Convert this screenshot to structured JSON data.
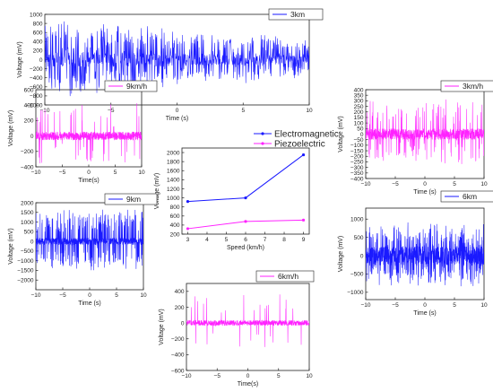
{
  "chart_data": [
    {
      "id": "p3kmEM",
      "type": "line",
      "color": "#1a1aff",
      "legend": "3km",
      "xlabel": "Time (s)",
      "ylabel": "Voltage (mV)",
      "xlim": [
        -10,
        10
      ],
      "ylim": [
        -1000,
        1000
      ],
      "xticks": [
        -10,
        -5,
        0,
        5,
        10
      ],
      "yticks": [
        -1000,
        -800,
        -600,
        -400,
        -200,
        0,
        200,
        400,
        600,
        800,
        1000
      ],
      "signal": {
        "base_amp": 160,
        "spike_rate": 0.5,
        "spike_amp": 650,
        "envelope": "decay",
        "seed": 11
      }
    },
    {
      "id": "p9kmPZ",
      "type": "line",
      "color": "#ff22ff",
      "legend": "9km/h",
      "xlabel": "Time(s)",
      "ylabel": "Voltage (mV)",
      "xlim": [
        -10,
        10
      ],
      "ylim": [
        -400,
        600
      ],
      "xticks": [
        -10,
        -5,
        0,
        5,
        10
      ],
      "yticks": [
        -400,
        -200,
        0,
        200,
        400,
        600
      ],
      "signal": {
        "base_amp": 55,
        "spike_rate": 0.05,
        "spike_amp": 400,
        "envelope": "flat",
        "seed": 21
      }
    },
    {
      "id": "p3kmPZ",
      "type": "line",
      "color": "#ff22ff",
      "legend": "3km/h",
      "xlabel": "Time (s)",
      "ylabel": "Voltage (mV)",
      "xlim": [
        -10,
        10
      ],
      "ylim": [
        -400,
        400
      ],
      "xticks": [
        -10,
        -5,
        0,
        5,
        10
      ],
      "yticks": [
        -400,
        -350,
        -300,
        -250,
        -200,
        -150,
        -100,
        -50,
        0,
        50,
        100,
        150,
        200,
        250,
        300,
        350,
        400
      ],
      "signal": {
        "base_amp": 50,
        "spike_rate": 0.12,
        "spike_amp": 280,
        "envelope": "flat",
        "seed": 31
      }
    },
    {
      "id": "pSpeed",
      "type": "line",
      "xlabel": "Speed (km/h)",
      "ylabel": "Voltage (mV)",
      "xlim": [
        2.7,
        9.3
      ],
      "ylim": [
        200,
        2100
      ],
      "xticks": [
        3,
        4,
        5,
        6,
        7,
        8,
        9
      ],
      "yticks": [
        200,
        400,
        600,
        800,
        1000,
        1200,
        1400,
        1600,
        1800,
        2000
      ],
      "x": [
        3,
        6,
        9
      ],
      "series": [
        {
          "name": "Electromagnetic",
          "color": "#1a1aff",
          "values": [
            920,
            1000,
            1950
          ]
        },
        {
          "name": "Piezoelectric",
          "color": "#ff22ff",
          "values": [
            320,
            480,
            510
          ]
        }
      ]
    },
    {
      "id": "p9kmEM",
      "type": "line",
      "color": "#1a1aff",
      "legend": "9km",
      "xlabel": "Time (s)",
      "ylabel": "Voltage (mV)",
      "xlim": [
        -10,
        10
      ],
      "ylim": [
        -2500,
        2000
      ],
      "xticks": [
        -10,
        -5,
        0,
        5,
        10
      ],
      "yticks": [
        -2000,
        -1500,
        -1000,
        -500,
        0,
        500,
        1000,
        1500,
        2000
      ],
      "signal": {
        "base_amp": 180,
        "spike_rate": 0.3,
        "spike_amp": 1500,
        "envelope": "flat",
        "seed": 41
      }
    },
    {
      "id": "p6kmEM",
      "type": "line",
      "color": "#1a1aff",
      "legend": "6km",
      "xlabel": "Time (s)",
      "ylabel": "Voltage (mV)",
      "xlim": [
        -10,
        10
      ],
      "ylim": [
        -1200,
        1300
      ],
      "xticks": [
        -10,
        -5,
        0,
        5,
        10
      ],
      "yticks": [
        -1000,
        -500,
        0,
        500,
        1000
      ],
      "signal": {
        "base_amp": 260,
        "spike_rate": 0.35,
        "spike_amp": 700,
        "envelope": "flat",
        "seed": 51
      }
    },
    {
      "id": "p6kmPZ",
      "type": "line",
      "color": "#ff22ff",
      "legend": "6km/h",
      "xlabel": "Time(s)",
      "ylabel": "Voltage (mV)",
      "xlim": [
        -10,
        10
      ],
      "ylim": [
        -600,
        500
      ],
      "xticks": [
        -10,
        -5,
        0,
        5,
        10
      ],
      "yticks": [
        -600,
        -400,
        -200,
        0,
        200,
        400
      ],
      "signal": {
        "base_amp": 35,
        "spike_rate": 0.03,
        "spike_amp": 350,
        "envelope": "flat",
        "seed": 61
      }
    }
  ]
}
